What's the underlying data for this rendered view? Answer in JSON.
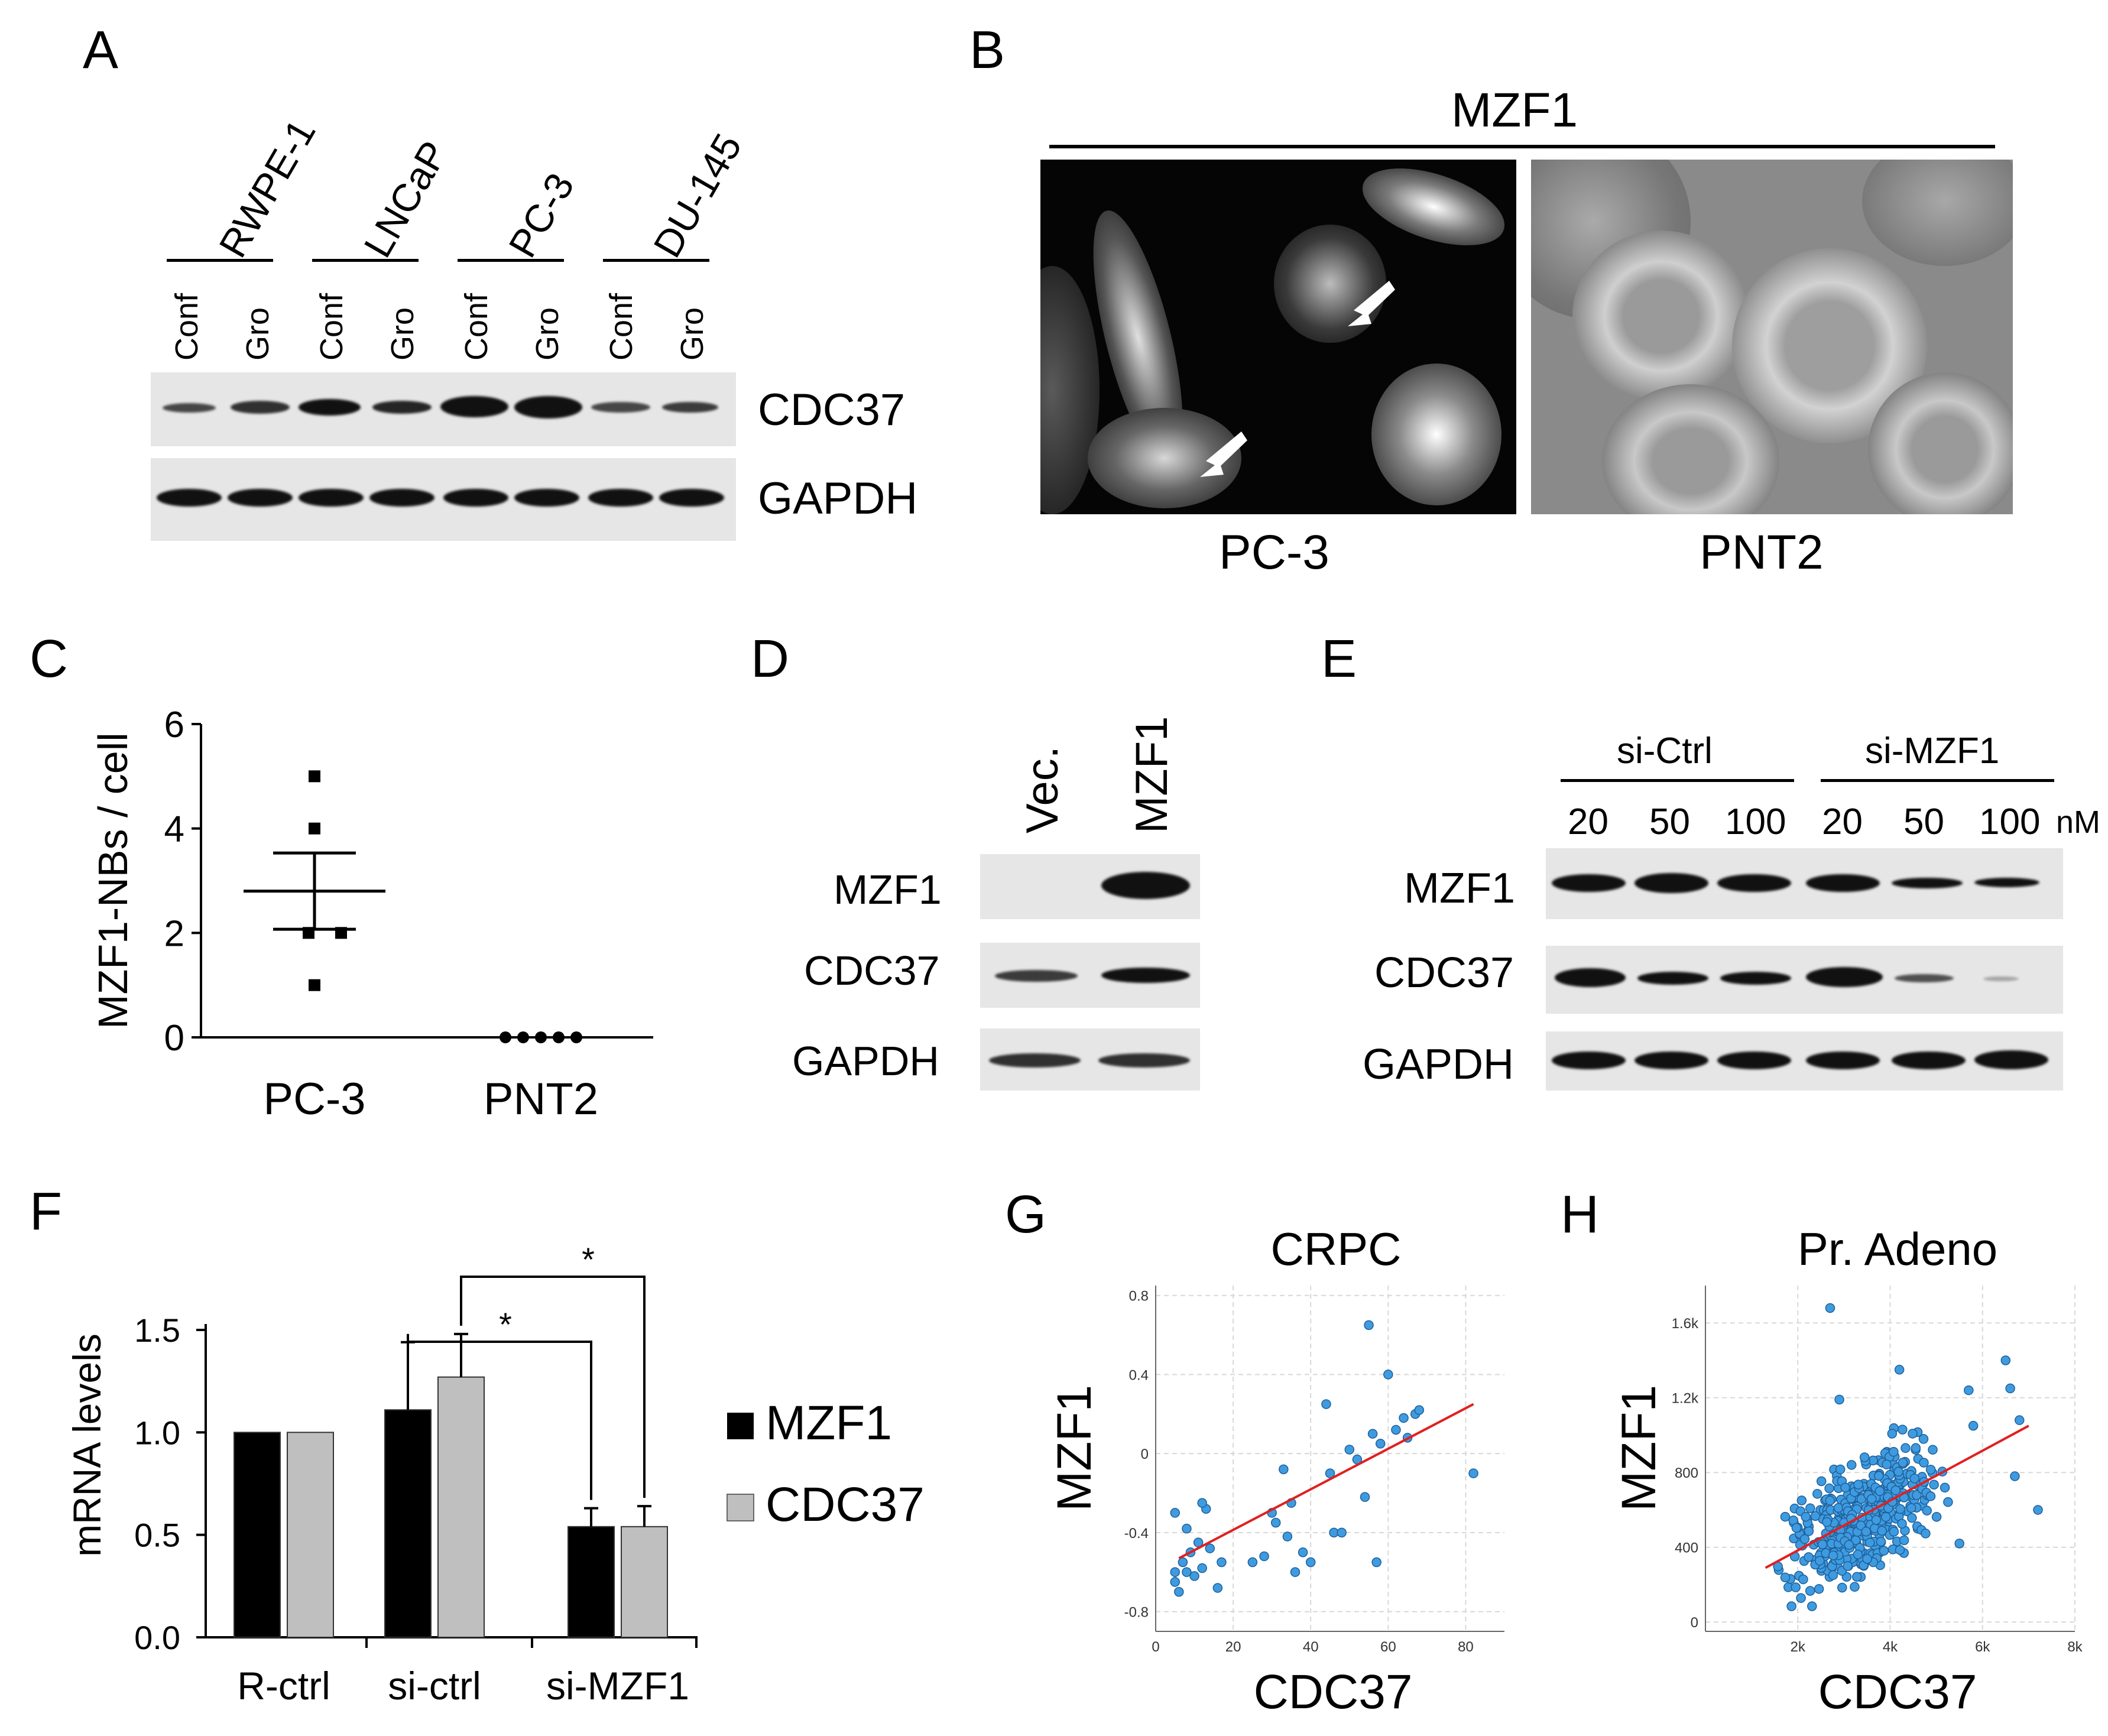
{
  "panels": {
    "A": {
      "label": "A",
      "cell_lines": [
        "RWPE-1",
        "LNCaP",
        "PC-3",
        "DU-145"
      ],
      "conditions": [
        "Conf",
        "Gro",
        "Conf",
        "Gro",
        "Conf",
        "Gro",
        "Conf",
        "Gro"
      ],
      "blot_labels": [
        "CDC37",
        "GAPDH"
      ]
    },
    "B": {
      "label": "B",
      "title": "MZF1",
      "image_labels": [
        "PC-3",
        "PNT2"
      ]
    },
    "C": {
      "label": "C",
      "chart_data": {
        "type": "scatter",
        "ylabel": "MZF1-NBs / cell",
        "categories": [
          "PC-3",
          "PNT2"
        ],
        "ylim": [
          0,
          6
        ],
        "yticks": [
          "0",
          "2",
          "4",
          "6"
        ],
        "series": [
          {
            "category": "PC-3",
            "points": [
              5,
              4,
              2,
              2,
              1
            ],
            "mean": 2.8,
            "sem": 0.73
          },
          {
            "category": "PNT2",
            "points": [
              0,
              0,
              0,
              0,
              0
            ],
            "mean": 0,
            "sem": 0
          }
        ]
      }
    },
    "D": {
      "label": "D",
      "lanes": [
        "Vec.",
        "MZF1"
      ],
      "blot_labels": [
        "MZF1",
        "CDC37",
        "GAPDH"
      ]
    },
    "E": {
      "label": "E",
      "groups": [
        "si-Ctrl",
        "si-MZF1"
      ],
      "doses": [
        "20",
        "50",
        "100",
        "20",
        "50",
        "100"
      ],
      "unit": "nM",
      "blot_labels": [
        "MZF1",
        "CDC37",
        "GAPDH"
      ]
    },
    "F": {
      "label": "F",
      "chart_data": {
        "type": "bar",
        "categories": [
          "R-ctrl",
          "si-ctrl",
          "si-MZF1"
        ],
        "ylabel": "mRNA levels",
        "ylim": [
          0,
          1.5
        ],
        "yticks": [
          "0.0",
          "0.5",
          "1.0",
          "1.5"
        ],
        "series": [
          {
            "name": "MZF1",
            "color": "#000000",
            "values": [
              1.0,
              1.11,
              0.54
            ],
            "errors": [
              0,
              0.33,
              0.09
            ]
          },
          {
            "name": "CDC37",
            "color": "#bfbfbf",
            "values": [
              1.0,
              1.27,
              0.54
            ],
            "errors": [
              0,
              0.21,
              0.1
            ]
          }
        ],
        "significance": [
          "*",
          "*"
        ]
      }
    },
    "G": {
      "label": "G",
      "chart_data": {
        "type": "scatter",
        "title": "CRPC",
        "xlabel": "CDC37",
        "ylabel": "MZF1",
        "xlim": [
          0,
          90
        ],
        "ylim": [
          -0.9,
          0.85
        ],
        "xticks": [
          "0",
          "20",
          "40",
          "60",
          "80"
        ],
        "yticks": [
          "-0.8",
          "-0.4",
          "0",
          "0.4",
          "0.8"
        ],
        "points": [
          [
            5,
            -0.6
          ],
          [
            5,
            -0.65
          ],
          [
            6,
            -0.7
          ],
          [
            7,
            -0.55
          ],
          [
            8,
            -0.6
          ],
          [
            9,
            -0.5
          ],
          [
            10,
            -0.62
          ],
          [
            11,
            -0.45
          ],
          [
            12,
            -0.58
          ],
          [
            13,
            -0.28
          ],
          [
            14,
            -0.48
          ],
          [
            16,
            -0.68
          ],
          [
            17,
            -0.55
          ],
          [
            5,
            -0.3
          ],
          [
            8,
            -0.38
          ],
          [
            12,
            -0.25
          ],
          [
            25,
            -0.55
          ],
          [
            28,
            -0.52
          ],
          [
            30,
            -0.3
          ],
          [
            31,
            -0.35
          ],
          [
            33,
            -0.08
          ],
          [
            34,
            -0.42
          ],
          [
            35,
            -0.25
          ],
          [
            36,
            -0.6
          ],
          [
            38,
            -0.5
          ],
          [
            40,
            -0.55
          ],
          [
            44,
            0.25
          ],
          [
            45,
            -0.1
          ],
          [
            46,
            -0.4
          ],
          [
            48,
            -0.4
          ],
          [
            50,
            0.02
          ],
          [
            52,
            -0.03
          ],
          [
            54,
            -0.22
          ],
          [
            55,
            0.65
          ],
          [
            56,
            0.1
          ],
          [
            57,
            -0.55
          ],
          [
            58,
            0.05
          ],
          [
            60,
            0.4
          ],
          [
            62,
            0.12
          ],
          [
            64,
            0.18
          ],
          [
            65,
            0.08
          ],
          [
            67,
            0.2
          ],
          [
            68,
            0.22
          ],
          [
            82,
            -0.1
          ]
        ],
        "trend": [
          [
            6,
            -0.53
          ],
          [
            82,
            0.25
          ]
        ]
      }
    },
    "H": {
      "label": "H",
      "chart_data": {
        "type": "scatter",
        "title": "Pr. Adeno",
        "xlabel": "CDC37",
        "ylabel": "MZF1",
        "xlim": [
          0,
          8000
        ],
        "ylim": [
          -50,
          1800
        ],
        "xticks": [
          "2k",
          "4k",
          "6k",
          "8k"
        ],
        "yticks": [
          "0",
          "400",
          "800",
          "1.2k",
          "1.6k"
        ],
        "points_note_count": 420,
        "outliers": [
          [
            2700,
            1680
          ],
          [
            2900,
            1190
          ],
          [
            4200,
            1350
          ],
          [
            5700,
            1240
          ],
          [
            5800,
            1050
          ],
          [
            6500,
            1400
          ],
          [
            6600,
            1250
          ],
          [
            6800,
            1080
          ],
          [
            6700,
            780
          ],
          [
            7200,
            600
          ],
          [
            5500,
            420
          ]
        ],
        "trend": [
          [
            1300,
            290
          ],
          [
            7000,
            1050
          ]
        ]
      }
    }
  }
}
